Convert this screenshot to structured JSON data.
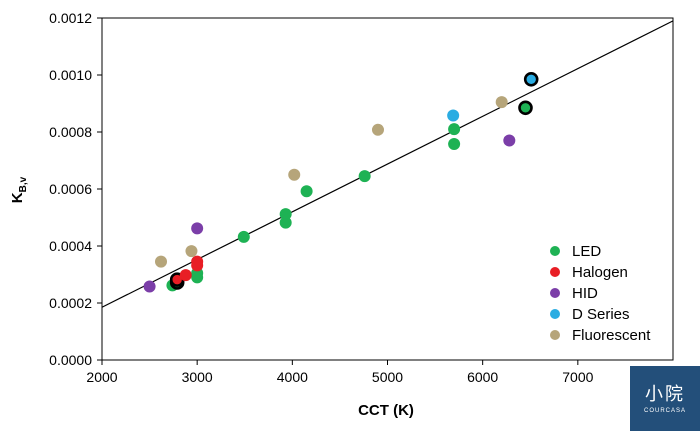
{
  "chart_data": {
    "type": "scatter",
    "xlabel": "CCT (K)",
    "ylabel_main": "K",
    "ylabel_sub": "B,v",
    "xlim": [
      2000,
      8000
    ],
    "ylim": [
      0.0,
      0.0012
    ],
    "xticks": [
      2000,
      3000,
      4000,
      5000,
      6000,
      7000
    ],
    "xtick_labels": [
      "2000",
      "3000",
      "4000",
      "5000",
      "6000",
      "7000"
    ],
    "yticks": [
      0.0,
      0.0002,
      0.0004,
      0.0006,
      0.0008,
      0.001,
      0.0012
    ],
    "ytick_labels": [
      "0.0000",
      "0.0002",
      "0.0004",
      "0.0006",
      "0.0008",
      "0.0010",
      "0.0012"
    ],
    "grid": false,
    "legend_position": "bottom-right",
    "trendline": {
      "x": [
        2000,
        8000
      ],
      "y": [
        0.000185,
        0.00119
      ]
    },
    "series": [
      {
        "name": "LED",
        "color": "#1eb254",
        "points": [
          [
            2740,
            0.000262
          ],
          [
            2790,
            0.000272
          ],
          [
            3000,
            0.00029
          ],
          [
            3000,
            0.000305
          ],
          [
            3490,
            0.000432
          ],
          [
            3930,
            0.000482
          ],
          [
            3930,
            0.000512
          ],
          [
            4150,
            0.000592
          ],
          [
            4760,
            0.000645
          ],
          [
            5700,
            0.000758
          ],
          [
            5700,
            0.00081
          ],
          [
            6450,
            0.000885
          ]
        ]
      },
      {
        "name": "Halogen",
        "color": "#e81e25",
        "points": [
          [
            2790,
            0.000282
          ],
          [
            2880,
            0.000298
          ],
          [
            3000,
            0.000332
          ],
          [
            3000,
            0.000345
          ]
        ]
      },
      {
        "name": "HID",
        "color": "#7b3ea8",
        "points": [
          [
            2500,
            0.000258
          ],
          [
            3000,
            0.000462
          ],
          [
            6280,
            0.00077
          ]
        ]
      },
      {
        "name": "D Series",
        "color": "#2aace2",
        "points": [
          [
            5690,
            0.000858
          ],
          [
            6510,
            0.000985
          ]
        ]
      },
      {
        "name": "Fluorescent",
        "color": "#b6a57a",
        "points": [
          [
            2620,
            0.000345
          ],
          [
            2940,
            0.000382
          ],
          [
            4020,
            0.00065
          ],
          [
            4900,
            0.000808
          ],
          [
            6200,
            0.000905
          ]
        ]
      }
    ],
    "highlighted_points": [
      [
        2790,
        0.000272
      ],
      [
        2790,
        0.000282
      ],
      [
        6450,
        0.000885
      ],
      [
        6510,
        0.000985
      ]
    ]
  },
  "watermark": {
    "cn": "小院",
    "en": "COURCASA"
  }
}
